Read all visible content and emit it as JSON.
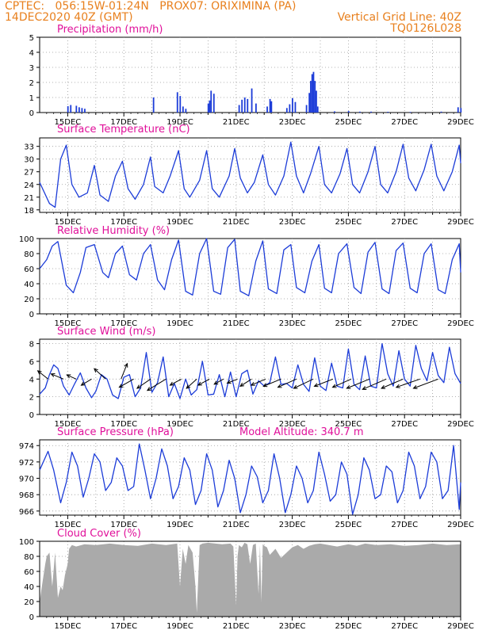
{
  "header": {
    "line1": "CPTEC:   056:15W-01:24N   PROX07: ORIXIMINA (PA)",
    "line2": "14DEC2020 40Z (GMT)",
    "grid_note": "Vertical Grid Line: 40Z",
    "run_id": "TQ0126L028"
  },
  "colors": {
    "header": "#e8801e",
    "title": "#e0109a",
    "series": "#1c3cd8",
    "bars": "#1c3cd8",
    "cloud": "#aaaaaa",
    "grid": "#9a9a9a",
    "arrow": "#000000"
  },
  "x_axis": {
    "start_day": 14,
    "end_day": 29,
    "labels": [
      "15DEC",
      "17DEC",
      "19DEC",
      "21DEC",
      "23DEC",
      "25DEC",
      "27DEC",
      "29DEC"
    ]
  },
  "chart_data": [
    {
      "id": "precip",
      "type": "bar",
      "title": "Precipitation (mm/h)",
      "ylim": [
        0,
        5
      ],
      "yticks": [
        0,
        1,
        2,
        3,
        4,
        5
      ],
      "values": [
        [
          15.0,
          0.42
        ],
        [
          15.1,
          0.5
        ],
        [
          15.3,
          0.45
        ],
        [
          15.4,
          0.35
        ],
        [
          15.5,
          0.3
        ],
        [
          15.6,
          0.25
        ],
        [
          18.05,
          1.0
        ],
        [
          18.9,
          1.35
        ],
        [
          19.0,
          1.1
        ],
        [
          19.1,
          0.4
        ],
        [
          19.2,
          0.25
        ],
        [
          20.0,
          0.6
        ],
        [
          20.05,
          0.8
        ],
        [
          20.1,
          1.45
        ],
        [
          20.2,
          1.25
        ],
        [
          21.1,
          0.5
        ],
        [
          21.2,
          0.85
        ],
        [
          21.3,
          1.0
        ],
        [
          21.4,
          0.9
        ],
        [
          21.55,
          1.6
        ],
        [
          21.7,
          0.6
        ],
        [
          22.1,
          0.4
        ],
        [
          22.2,
          0.9
        ],
        [
          22.25,
          0.75
        ],
        [
          22.8,
          0.3
        ],
        [
          22.9,
          0.55
        ],
        [
          23.0,
          0.95
        ],
        [
          23.1,
          0.7
        ],
        [
          23.5,
          0.5
        ],
        [
          23.6,
          1.3
        ],
        [
          23.65,
          2.1
        ],
        [
          23.7,
          2.55
        ],
        [
          23.75,
          2.7
        ],
        [
          23.8,
          2.1
        ],
        [
          23.85,
          1.45
        ],
        [
          23.9,
          0.4
        ],
        [
          24.5,
          0.08
        ],
        [
          25.0,
          0.1
        ],
        [
          25.4,
          0.06
        ],
        [
          25.8,
          0.06
        ],
        [
          26.4,
          0.05
        ],
        [
          27.2,
          0.04
        ],
        [
          28.3,
          0.06
        ],
        [
          28.9,
          0.35
        ],
        [
          29.0,
          0.3
        ]
      ]
    },
    {
      "id": "temp",
      "type": "line",
      "title": "Surface Temperature (nC)",
      "ylim": [
        17.4,
        35.0
      ],
      "yticks": [
        18,
        21,
        24,
        27,
        30,
        33
      ],
      "x": [
        14.0,
        14.35,
        14.55,
        14.75,
        14.95,
        15.15,
        15.4,
        15.7,
        15.95,
        16.15,
        16.45,
        16.7,
        16.95,
        17.15,
        17.4,
        17.7,
        17.95,
        18.1,
        18.4,
        18.65,
        18.95,
        19.15,
        19.35,
        19.7,
        19.95,
        20.15,
        20.4,
        20.75,
        20.95,
        21.15,
        21.4,
        21.65,
        21.95,
        22.15,
        22.4,
        22.7,
        22.95,
        23.15,
        23.4,
        23.65,
        23.95,
        24.15,
        24.4,
        24.7,
        24.95,
        25.15,
        25.4,
        25.7,
        25.95,
        26.15,
        26.4,
        26.7,
        26.95,
        27.15,
        27.4,
        27.7,
        27.95,
        28.15,
        28.4,
        28.7,
        28.95,
        29.0
      ],
      "values": [
        24.5,
        19.5,
        18.6,
        30.0,
        33.3,
        24.0,
        21.0,
        22.0,
        28.5,
        21.5,
        20.0,
        26.0,
        29.5,
        23.0,
        20.5,
        24.0,
        30.5,
        23.5,
        22.0,
        26.0,
        32.0,
        23.0,
        21.0,
        25.0,
        32.0,
        23.0,
        21.0,
        26.0,
        32.5,
        25.5,
        22.0,
        24.5,
        31.0,
        24.0,
        21.5,
        26.0,
        34.0,
        26.0,
        22.0,
        26.5,
        33.0,
        24.0,
        22.0,
        26.5,
        32.5,
        24.0,
        22.0,
        27.0,
        33.0,
        24.0,
        22.0,
        27.0,
        33.5,
        25.5,
        22.5,
        27.5,
        33.5,
        26.0,
        22.5,
        27.0,
        33.3,
        29.0
      ]
    },
    {
      "id": "rh",
      "type": "line",
      "title": "Relative Humidity (%)",
      "ylim": [
        0,
        100
      ],
      "yticks": [
        0,
        20,
        40,
        60,
        80,
        100
      ],
      "x": [
        14.0,
        14.25,
        14.45,
        14.65,
        14.95,
        15.2,
        15.45,
        15.65,
        15.95,
        16.25,
        16.45,
        16.7,
        16.95,
        17.2,
        17.45,
        17.7,
        17.95,
        18.2,
        18.45,
        18.7,
        18.95,
        19.2,
        19.45,
        19.7,
        19.95,
        20.2,
        20.45,
        20.7,
        20.95,
        21.15,
        21.45,
        21.7,
        21.95,
        22.15,
        22.45,
        22.7,
        22.95,
        23.15,
        23.45,
        23.7,
        23.95,
        24.15,
        24.4,
        24.65,
        24.95,
        25.2,
        25.45,
        25.7,
        25.95,
        26.2,
        26.45,
        26.7,
        26.95,
        27.2,
        27.45,
        27.7,
        27.95,
        28.2,
        28.45,
        28.7,
        28.95,
        29.0
      ],
      "values": [
        60,
        72,
        90,
        96,
        38,
        28,
        55,
        88,
        92,
        55,
        48,
        80,
        90,
        52,
        45,
        80,
        92,
        45,
        32,
        72,
        98,
        30,
        25,
        80,
        100,
        30,
        26,
        88,
        99,
        30,
        24,
        70,
        97,
        33,
        27,
        85,
        92,
        35,
        28,
        70,
        92,
        34,
        28,
        80,
        93,
        35,
        27,
        82,
        95,
        33,
        27,
        84,
        94,
        34,
        28,
        80,
        93,
        32,
        27,
        72,
        93,
        55
      ]
    },
    {
      "id": "wind",
      "type": "line",
      "title": "Surface Wind (m/s)",
      "ylim": [
        0,
        8.5
      ],
      "yticks": [
        0,
        2,
        4,
        6,
        8
      ],
      "x": [
        14.0,
        14.2,
        14.35,
        14.5,
        14.65,
        14.85,
        15.05,
        15.25,
        15.45,
        15.65,
        15.85,
        16.0,
        16.2,
        16.4,
        16.6,
        16.8,
        17.0,
        17.2,
        17.4,
        17.6,
        17.8,
        18.0,
        18.2,
        18.4,
        18.6,
        18.8,
        19.0,
        19.2,
        19.4,
        19.6,
        19.8,
        20.0,
        20.2,
        20.4,
        20.6,
        20.8,
        21.0,
        21.2,
        21.4,
        21.6,
        21.8,
        22.0,
        22.2,
        22.4,
        22.6,
        22.8,
        23.0,
        23.2,
        23.4,
        23.6,
        23.8,
        24.0,
        24.2,
        24.4,
        24.6,
        24.8,
        25.0,
        25.2,
        25.4,
        25.6,
        25.8,
        26.0,
        26.2,
        26.4,
        26.6,
        26.8,
        27.0,
        27.2,
        27.4,
        27.6,
        27.8,
        28.0,
        28.2,
        28.4,
        28.6,
        28.8,
        29.0
      ],
      "values": [
        2.3,
        3.0,
        4.5,
        5.6,
        5.2,
        3.2,
        2.2,
        3.5,
        4.7,
        3.0,
        1.9,
        2.6,
        4.5,
        4.0,
        2.2,
        1.8,
        4.2,
        4.5,
        2.0,
        3.0,
        7.0,
        2.5,
        3.6,
        6.5,
        2.0,
        3.5,
        1.8,
        4.0,
        2.2,
        2.8,
        6.0,
        2.2,
        2.3,
        4.5,
        2.0,
        4.8,
        2.0,
        4.6,
        5.0,
        2.3,
        3.8,
        3.2,
        3.6,
        6.5,
        3.4,
        3.5,
        3.0,
        5.6,
        3.4,
        2.6,
        6.4,
        3.2,
        2.7,
        5.8,
        3.2,
        3.0,
        7.4,
        3.4,
        2.8,
        6.6,
        3.2,
        3.0,
        8.0,
        4.6,
        3.2,
        7.2,
        4.0,
        3.2,
        7.8,
        5.2,
        3.8,
        7.0,
        4.4,
        3.6,
        7.6,
        4.6,
        3.5
      ],
      "vectors": [
        [
          14.3,
          -0.5,
          0.4
        ],
        [
          14.85,
          -0.6,
          0.25
        ],
        [
          15.3,
          -0.45,
          0.2
        ],
        [
          15.85,
          -0.5,
          -0.3
        ],
        [
          16.35,
          -0.55,
          0.5
        ],
        [
          16.9,
          0.3,
          0.75
        ],
        [
          17.35,
          -0.7,
          -0.4
        ],
        [
          17.95,
          -0.65,
          -0.45
        ],
        [
          18.5,
          -0.9,
          -0.55
        ],
        [
          19.05,
          -0.55,
          -0.3
        ],
        [
          19.6,
          -0.5,
          -0.45
        ],
        [
          20.05,
          -0.55,
          -0.3
        ],
        [
          20.55,
          -0.45,
          -0.25
        ],
        [
          21.05,
          -0.5,
          -0.2
        ],
        [
          21.55,
          -0.55,
          -0.35
        ],
        [
          22.05,
          -0.7,
          -0.3
        ],
        [
          22.6,
          -0.85,
          -0.35
        ],
        [
          23.15,
          -0.9,
          -0.4
        ],
        [
          23.75,
          -0.95,
          -0.45
        ],
        [
          24.45,
          -0.9,
          -0.35
        ],
        [
          25.1,
          -0.9,
          -0.4
        ],
        [
          25.75,
          -1.1,
          -0.45
        ],
        [
          26.35,
          -1.15,
          -0.5
        ],
        [
          26.95,
          -1.05,
          -0.45
        ],
        [
          27.55,
          -1.15,
          -0.4
        ],
        [
          28.2,
          -1.2,
          -0.45
        ]
      ]
    },
    {
      "id": "pres",
      "type": "line",
      "title": "Surface Pressure (hPa)",
      "note": "Model Altitude: 340.7 m",
      "ylim": [
        965.5,
        974.7
      ],
      "yticks": [
        966,
        968,
        970,
        972,
        974
      ],
      "x": [
        14.0,
        14.3,
        14.5,
        14.75,
        14.95,
        15.15,
        15.35,
        15.55,
        15.75,
        15.95,
        16.15,
        16.35,
        16.55,
        16.75,
        16.95,
        17.15,
        17.35,
        17.55,
        17.75,
        17.95,
        18.15,
        18.35,
        18.55,
        18.75,
        18.95,
        19.15,
        19.35,
        19.55,
        19.75,
        19.95,
        20.15,
        20.35,
        20.55,
        20.75,
        20.95,
        21.15,
        21.35,
        21.55,
        21.75,
        21.95,
        22.15,
        22.35,
        22.55,
        22.75,
        22.95,
        23.15,
        23.35,
        23.55,
        23.75,
        23.95,
        24.15,
        24.35,
        24.55,
        24.75,
        24.95,
        25.15,
        25.35,
        25.55,
        25.75,
        25.95,
        26.15,
        26.35,
        26.55,
        26.75,
        26.95,
        27.15,
        27.35,
        27.55,
        27.75,
        27.95,
        28.15,
        28.35,
        28.55,
        28.75,
        28.95,
        29.0
      ],
      "values": [
        971.0,
        973.3,
        971.0,
        967.0,
        969.5,
        973.2,
        971.5,
        967.7,
        970.0,
        973.0,
        972.0,
        968.5,
        969.5,
        972.5,
        971.5,
        968.5,
        969.0,
        974.2,
        971.0,
        967.5,
        970.0,
        973.6,
        971.5,
        967.5,
        969.0,
        972.5,
        971.0,
        966.8,
        968.5,
        973.0,
        971.0,
        966.5,
        968.5,
        972.2,
        970.0,
        965.8,
        968.0,
        971.5,
        970.2,
        967.0,
        968.5,
        973.0,
        970.0,
        965.8,
        968.0,
        971.5,
        970.0,
        967.0,
        968.5,
        973.2,
        970.5,
        967.2,
        968.0,
        972.0,
        970.5,
        965.6,
        968.0,
        972.5,
        971.0,
        967.5,
        968.0,
        971.5,
        970.8,
        967.0,
        968.5,
        973.2,
        971.5,
        967.5,
        969.0,
        973.2,
        972.0,
        967.5,
        968.5,
        974.0,
        966.2,
        969.5
      ]
    },
    {
      "id": "cloud",
      "type": "area",
      "title": "Cloud Cover (%)",
      "ylim": [
        0,
        100
      ],
      "yticks": [
        0,
        20,
        40,
        60,
        80,
        100
      ],
      "x": [
        14.0,
        14.1,
        14.2,
        14.25,
        14.35,
        14.45,
        14.55,
        14.65,
        14.75,
        14.82,
        14.9,
        15.0,
        15.05,
        15.15,
        15.3,
        15.6,
        16.0,
        16.5,
        17.0,
        17.5,
        18.0,
        18.5,
        18.9,
        19.0,
        19.1,
        19.2,
        19.3,
        19.45,
        19.55,
        19.6,
        19.7,
        19.8,
        20.0,
        20.5,
        20.8,
        20.9,
        21.0,
        21.05,
        21.1,
        21.2,
        21.3,
        21.4,
        21.5,
        21.6,
        21.7,
        21.8,
        21.85,
        21.9,
        21.95,
        22.0,
        22.1,
        22.2,
        22.4,
        22.6,
        22.8,
        23.0,
        23.2,
        23.4,
        23.6,
        23.8,
        24.0,
        24.3,
        24.6,
        25.0,
        25.3,
        25.6,
        26.0,
        26.5,
        27.0,
        27.5,
        28.0,
        28.5,
        29.0
      ],
      "values": [
        20,
        45,
        70,
        80,
        85,
        40,
        85,
        25,
        40,
        35,
        55,
        70,
        90,
        95,
        93,
        96,
        95,
        97,
        95,
        94,
        97,
        95,
        97,
        40,
        90,
        70,
        95,
        85,
        40,
        5,
        95,
        97,
        98,
        96,
        97,
        93,
        15,
        80,
        95,
        92,
        98,
        96,
        70,
        95,
        97,
        30,
        95,
        20,
        96,
        94,
        92,
        82,
        90,
        78,
        85,
        92,
        95,
        90,
        94,
        96,
        97,
        95,
        93,
        96,
        94,
        97,
        95,
        96,
        94,
        95,
        97,
        95,
        96
      ]
    }
  ]
}
